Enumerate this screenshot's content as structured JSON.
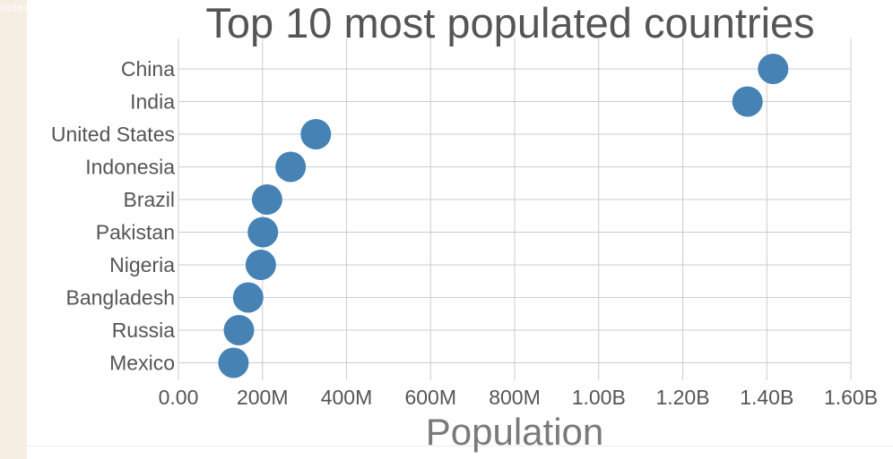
{
  "background_tab_text": "index",
  "colors": {
    "point": "#4682b4",
    "grid": "#cccccc",
    "text": "#555555",
    "page_background": "#f6ede3"
  },
  "chart_data": {
    "type": "scatter",
    "title": "Top 10 most populated countries",
    "xlabel": "Population",
    "ylabel": "",
    "categories": [
      "China",
      "India",
      "United States",
      "Indonesia",
      "Brazil",
      "Pakistan",
      "Nigeria",
      "Bangladesh",
      "Russia",
      "Mexico"
    ],
    "values": [
      1415000000,
      1354000000,
      327000000,
      267000000,
      211000000,
      201000000,
      196000000,
      166000000,
      144000000,
      131000000
    ],
    "xlim": [
      0,
      1600000000
    ],
    "x_ticks": [
      "0.00",
      "200M",
      "400M",
      "600M",
      "800M",
      "1.00B",
      "1.20B",
      "1.40B",
      "1.60B"
    ],
    "grid": true,
    "legend": "none"
  }
}
